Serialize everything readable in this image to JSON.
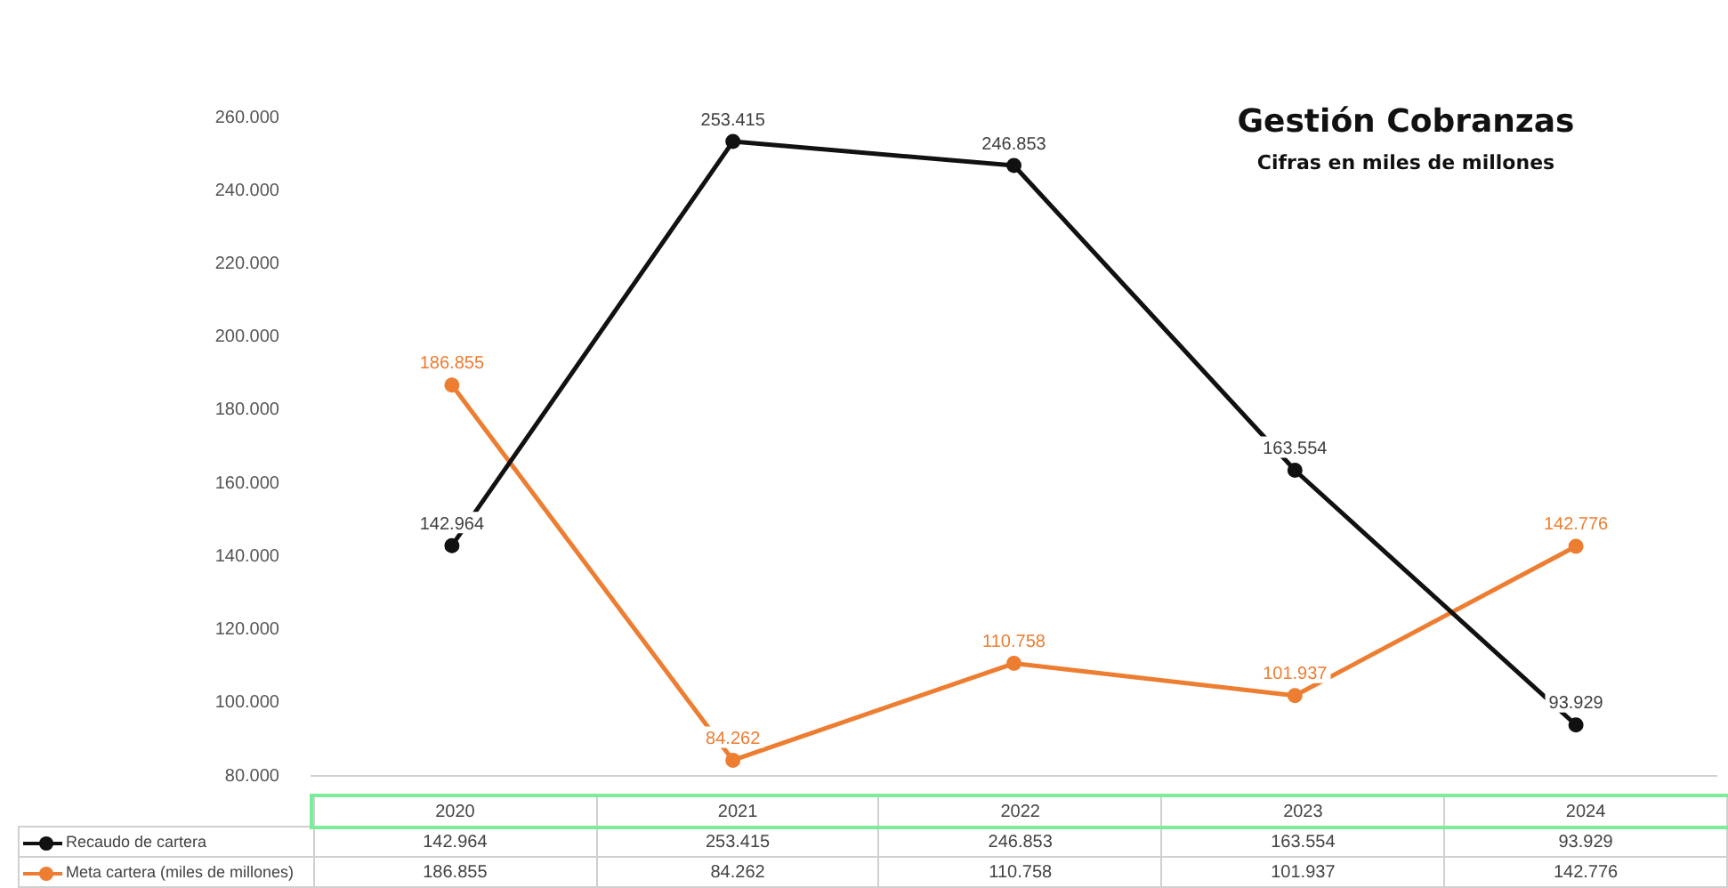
{
  "chart_data": {
    "type": "line",
    "title": "Gestión Cobranzas",
    "subtitle": "Cifras en miles de millones",
    "categories": [
      "2020",
      "2021",
      "2022",
      "2023",
      "2024"
    ],
    "series": [
      {
        "name": "Recaudo de cartera",
        "color": "#111111",
        "values": [
          142964,
          253415,
          246853,
          163554,
          93929
        ],
        "value_labels": [
          "142.964",
          "253.415",
          "246.853",
          "163.554",
          "93.929"
        ]
      },
      {
        "name": "Meta cartera (miles de millones)",
        "color": "#ed7d31",
        "values": [
          186855,
          84262,
          110758,
          101937,
          142776
        ],
        "value_labels": [
          "186.855",
          "84.262",
          "110.758",
          "101.937",
          "142.776"
        ]
      }
    ],
    "ylim": [
      80000,
      260000
    ],
    "yticks": [
      {
        "value": 80000,
        "label": "80.000"
      },
      {
        "value": 100000,
        "label": "100.000"
      },
      {
        "value": 120000,
        "label": "120.000"
      },
      {
        "value": 140000,
        "label": "140.000"
      },
      {
        "value": 160000,
        "label": "160.000"
      },
      {
        "value": 180000,
        "label": "180.000"
      },
      {
        "value": 200000,
        "label": "200.000"
      },
      {
        "value": 220000,
        "label": "220.000"
      },
      {
        "value": 240000,
        "label": "240.000"
      },
      {
        "value": 260000,
        "label": "260.000"
      }
    ],
    "grid": false,
    "legend": "bottom left",
    "marker": "circle",
    "line_style": "solid",
    "data_labels": false
  }
}
